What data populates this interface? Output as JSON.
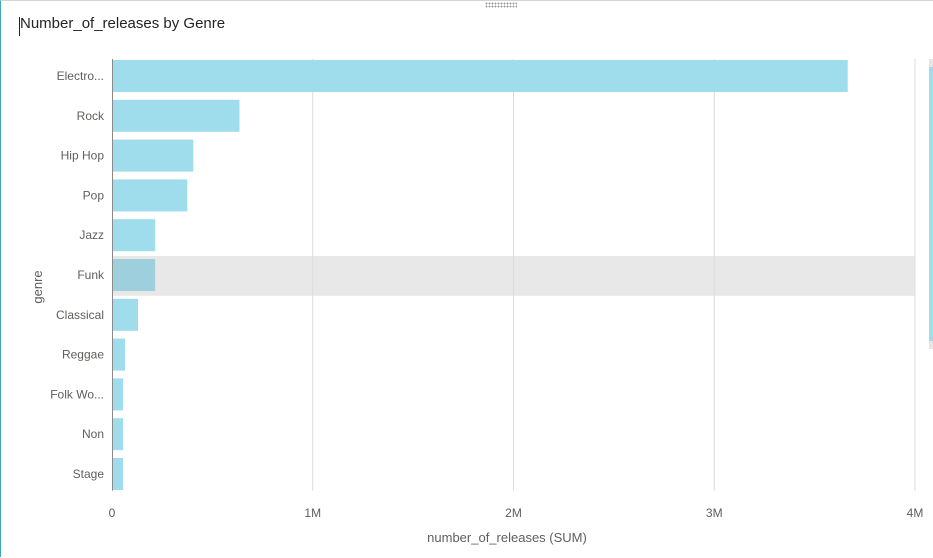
{
  "visual": {
    "title": "Number_of_releases by Genre"
  },
  "chart_data": {
    "type": "bar",
    "orientation": "horizontal",
    "title": "Number_of_releases by Genre",
    "xlabel": "number_of_releases (SUM)",
    "ylabel": "genre",
    "categories": [
      "Electro...",
      "Rock",
      "Hip Hop",
      "Pop",
      "Jazz",
      "Funk",
      "Classical",
      "Reggae",
      "Folk Wo...",
      "Non",
      "Stage"
    ],
    "values": [
      3660000,
      630000,
      400000,
      370000,
      210000,
      210000,
      125000,
      60000,
      50000,
      50000,
      50000
    ],
    "xlim": [
      0,
      4000000
    ],
    "xticks": [
      0,
      1000000,
      2000000,
      3000000,
      4000000
    ],
    "xtick_labels": [
      "0",
      "1M",
      "2M",
      "3M",
      "4M"
    ],
    "highlighted_category": "Funk",
    "bar_color": "#9fdded",
    "highlight_bar_color": "#9ecfdc",
    "highlight_band_color": "#e8e8e8",
    "grid": true
  }
}
